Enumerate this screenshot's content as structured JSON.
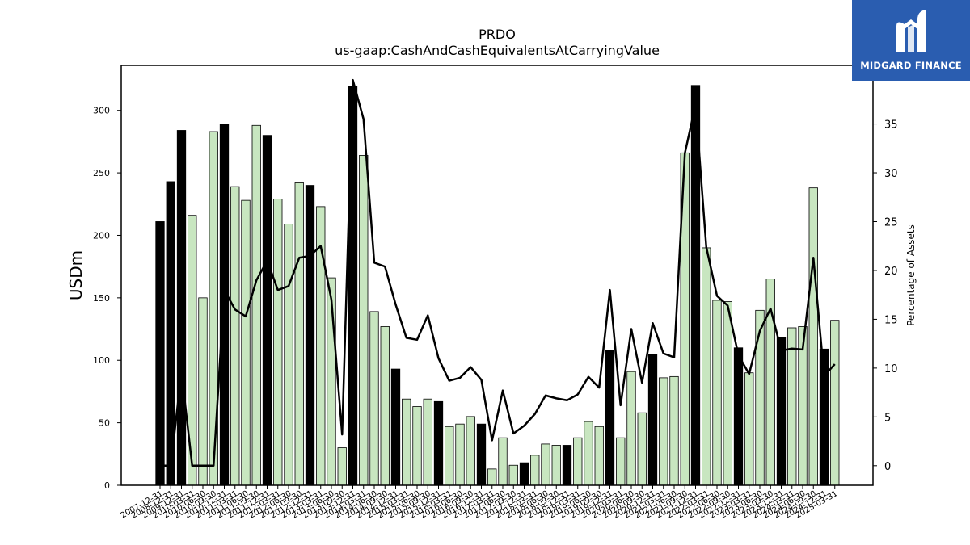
{
  "logo": {
    "text": "MIDGARD FINANCE",
    "icon": "midgard-m-logo-icon",
    "bg_color": "#2a5db0"
  },
  "chart_data": {
    "type": "bar",
    "title": "PRDO",
    "subtitle": "us-gaap:CashAndCashEquivalentsAtCarryingValue",
    "ylabel": "USDm",
    "y2label": "Percentage of Assets",
    "ylim": [
      0,
      336
    ],
    "y2lim": [
      -2,
      41
    ],
    "yticks": [
      0,
      50,
      100,
      150,
      200,
      250,
      300
    ],
    "y2ticks": [
      0,
      5,
      10,
      15,
      20,
      25,
      30,
      35,
      40
    ],
    "colors": {
      "annual": "#000000",
      "quarter": "#c8e6c0",
      "line": "#000000"
    },
    "categories": [
      "2007-12-31",
      "2008-12-31",
      "2009-12-31",
      "2010-03-31",
      "2010-06-30",
      "2010-09-30",
      "2010-12-31",
      "2011-03-31",
      "2011-06-30",
      "2011-09-30",
      "2011-12-31",
      "2012-03-31",
      "2012-06-30",
      "2012-09-30",
      "2012-12-31",
      "2013-03-31",
      "2013-06-30",
      "2013-09-30",
      "2013-12-31",
      "2014-03-31",
      "2014-06-30",
      "2014-09-30",
      "2014-12-31",
      "2015-03-31",
      "2015-06-30",
      "2015-09-30",
      "2015-12-31",
      "2016-03-31",
      "2016-06-30",
      "2016-09-30",
      "2016-12-31",
      "2017-03-31",
      "2017-06-30",
      "2017-09-30",
      "2017-12-31",
      "2018-03-31",
      "2018-06-30",
      "2018-09-30",
      "2018-12-31",
      "2019-03-31",
      "2019-06-30",
      "2019-09-30",
      "2019-12-31",
      "2020-03-31",
      "2020-06-30",
      "2020-09-30",
      "2020-12-31",
      "2021-03-31",
      "2021-06-30",
      "2021-09-30",
      "2021-12-31",
      "2022-03-31",
      "2022-06-30",
      "2022-09-30",
      "2022-12-31",
      "2023-03-31",
      "2023-06-30",
      "2023-09-30",
      "2023-12-31",
      "2024-03-31",
      "2024-06-30",
      "2024-09-30",
      "2024-12-31",
      "2025-03-31"
    ],
    "annual_flags": [
      1,
      1,
      1,
      0,
      0,
      0,
      1,
      0,
      0,
      0,
      1,
      0,
      0,
      0,
      1,
      0,
      0,
      0,
      1,
      0,
      0,
      0,
      1,
      0,
      0,
      0,
      1,
      0,
      0,
      0,
      1,
      0,
      0,
      0,
      1,
      0,
      0,
      0,
      1,
      0,
      0,
      0,
      1,
      0,
      0,
      0,
      1,
      0,
      0,
      0,
      1,
      0,
      0,
      0,
      1,
      0,
      0,
      0,
      1,
      0,
      0,
      0,
      1,
      0
    ],
    "series": [
      {
        "name": "Cash and cash equivalents",
        "values": [
          211,
          243,
          284,
          216,
          150,
          283,
          289,
          239,
          228,
          288,
          280,
          229,
          209,
          242,
          240,
          223,
          166,
          30,
          319,
          264,
          139,
          127,
          93,
          69,
          63,
          69,
          67,
          47,
          49,
          55,
          49,
          13,
          38,
          16,
          18,
          24,
          33,
          32,
          32,
          38,
          51,
          47,
          108,
          38,
          91,
          58,
          105,
          86,
          87,
          266,
          320,
          190,
          148,
          147,
          110,
          90,
          140,
          165,
          118,
          126,
          127,
          238,
          109,
          132
        ]
      },
      {
        "name": "Percentage of Assets",
        "axis": "right",
        "values": [
          0,
          0,
          9.6,
          0,
          0,
          0,
          18,
          16,
          15.3,
          19,
          21,
          18,
          18.4,
          21.3,
          21.5,
          22.5,
          17,
          3.2,
          39.5,
          35.5,
          20.8,
          20.4,
          16.5,
          13.1,
          12.9,
          15.4,
          11,
          8.7,
          9,
          10.1,
          8.8,
          2.6,
          7.7,
          3.3,
          4.1,
          5.3,
          7.2,
          6.9,
          6.7,
          7.3,
          9.1,
          8,
          18,
          6.2,
          14,
          8.5,
          14.6,
          11.5,
          11.1,
          32,
          37,
          22.4,
          17.4,
          16.4,
          11.3,
          9.4,
          13.8,
          16.1,
          11.8,
          12,
          11.9,
          21.3,
          9.2,
          10.4
        ]
      }
    ]
  }
}
